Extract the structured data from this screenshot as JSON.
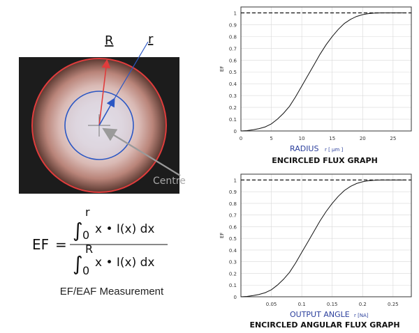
{
  "diagram": {
    "label_R": "R",
    "label_r": "r",
    "label_centre": "Centre",
    "colors": {
      "background": "#1c1c1c",
      "outer_circle": "#e03c3c",
      "inner_circle": "#2b57c4",
      "radius_R_arrow": "#e03c3c",
      "radius_r_arrow": "#2b57c4",
      "centre_pointer": "#9a9a9a"
    }
  },
  "formula": {
    "lhs": "EF",
    "equals": "=",
    "numerator_upper": "r",
    "denominator_upper": "R",
    "lower_limit": "0",
    "integrand": "x • I(x) dx"
  },
  "caption": "EF/EAF Measurement",
  "chart_data": [
    {
      "type": "line",
      "title": "ENCIRCLED FLUX GRAPH",
      "ylabel": "EF",
      "xlabel": "RADIUS",
      "xunit": "r [ μm ]",
      "x_ticks": [
        0,
        5,
        10,
        15,
        20,
        25
      ],
      "y_ticks": [
        0,
        0.1,
        0.2,
        0.3,
        0.4,
        0.5,
        0.6,
        0.7,
        0.8,
        0.9,
        1
      ],
      "xlim": [
        0,
        28
      ],
      "ylim": [
        0,
        1.05
      ],
      "grid": true,
      "reference_line": {
        "y": 1,
        "style": "dashed"
      },
      "series": [
        {
          "x": [
            0,
            1,
            2,
            3,
            4,
            5,
            6,
            7,
            8,
            9,
            10,
            11,
            12,
            13,
            14,
            15,
            16,
            17,
            18,
            19,
            20,
            21,
            22,
            23,
            24,
            25,
            26,
            27
          ],
          "values": [
            0,
            0.003,
            0.01,
            0.02,
            0.035,
            0.06,
            0.1,
            0.15,
            0.21,
            0.29,
            0.38,
            0.47,
            0.56,
            0.65,
            0.73,
            0.8,
            0.86,
            0.91,
            0.945,
            0.97,
            0.985,
            0.994,
            0.998,
            1,
            1,
            1,
            1,
            1
          ]
        }
      ]
    },
    {
      "type": "line",
      "title": "ENCIRCLED ANGULAR FLUX GRAPH",
      "ylabel": "EF",
      "xlabel": "OUTPUT ANGLE",
      "xunit": "r [NA]",
      "x_ticks": [
        0.05,
        0.1,
        0.15,
        0.2,
        0.25
      ],
      "x_tick_labels": [
        "0.05",
        "0.1",
        "0.15",
        "0.2",
        "0.25"
      ],
      "y_ticks": [
        0,
        0.1,
        0.2,
        0.3,
        0.4,
        0.5,
        0.6,
        0.7,
        0.8,
        0.9,
        1
      ],
      "xlim": [
        0,
        0.28
      ],
      "ylim": [
        0,
        1.05
      ],
      "grid": true,
      "reference_line": {
        "y": 1,
        "style": "dashed"
      },
      "series": [
        {
          "x": [
            0,
            0.01,
            0.02,
            0.03,
            0.04,
            0.05,
            0.06,
            0.07,
            0.08,
            0.09,
            0.1,
            0.11,
            0.12,
            0.13,
            0.14,
            0.15,
            0.16,
            0.17,
            0.18,
            0.19,
            0.2,
            0.21,
            0.22,
            0.23,
            0.24,
            0.25,
            0.26,
            0.27
          ],
          "values": [
            0,
            0.003,
            0.01,
            0.02,
            0.035,
            0.06,
            0.1,
            0.15,
            0.21,
            0.29,
            0.38,
            0.47,
            0.56,
            0.65,
            0.73,
            0.8,
            0.86,
            0.91,
            0.945,
            0.97,
            0.985,
            0.994,
            0.998,
            1,
            1,
            1,
            1,
            1
          ]
        }
      ]
    }
  ]
}
